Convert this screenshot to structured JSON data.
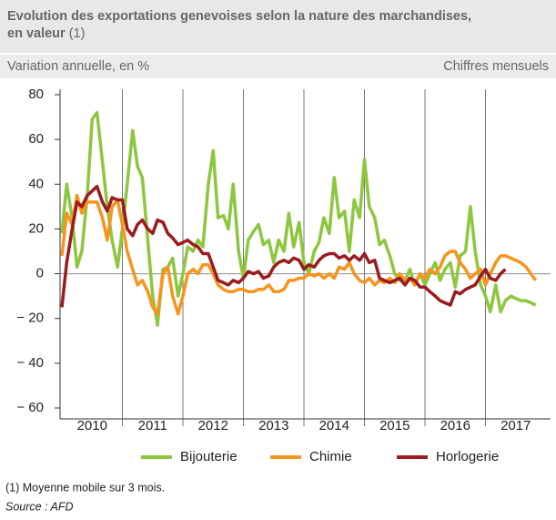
{
  "chart_data": {
    "type": "line",
    "title": "Evolution des exportations genevoises selon la nature des marchandises, en valeur",
    "title_note": "(1)",
    "subtitle": "Variation annuelle, en %",
    "frequency": "Chiffres mensuels",
    "footnote": "(1) Moyenne mobile sur 3 mois.",
    "source": "Source : AFD",
    "x": [
      2010,
      2010.08,
      2010.17,
      2010.25,
      2010.33,
      2010.42,
      2010.5,
      2010.58,
      2010.67,
      2010.75,
      2010.83,
      2010.92,
      2011,
      2011.08,
      2011.17,
      2011.25,
      2011.33,
      2011.42,
      2011.5,
      2011.58,
      2011.67,
      2011.75,
      2011.83,
      2011.92,
      2012,
      2012.08,
      2012.17,
      2012.25,
      2012.33,
      2012.42,
      2012.5,
      2012.58,
      2012.67,
      2012.75,
      2012.83,
      2012.92,
      2013,
      2013.08,
      2013.17,
      2013.25,
      2013.33,
      2013.42,
      2013.5,
      2013.58,
      2013.67,
      2013.75,
      2013.83,
      2013.92,
      2014,
      2014.08,
      2014.17,
      2014.25,
      2014.33,
      2014.42,
      2014.5,
      2014.58,
      2014.67,
      2014.75,
      2014.83,
      2014.92,
      2015,
      2015.08,
      2015.17,
      2015.25,
      2015.33,
      2015.42,
      2015.5,
      2015.58,
      2015.67,
      2015.75,
      2015.83,
      2015.92,
      2016,
      2016.08,
      2016.17,
      2016.25,
      2016.33,
      2016.42,
      2016.5,
      2016.58,
      2016.67,
      2016.75,
      2016.83,
      2016.92,
      2017,
      2017.08,
      2017.17,
      2017.25,
      2017.33,
      2017.42,
      2017.5,
      2017.58,
      2017.67,
      2017.75,
      2017.83
    ],
    "series": [
      {
        "name": "Bijouterie",
        "color": "#8dc63f",
        "values": [
          18,
          40,
          25,
          3,
          10,
          35,
          69,
          72,
          50,
          30,
          15,
          3,
          20,
          40,
          64,
          48,
          43,
          15,
          -10,
          -23,
          2,
          3,
          7,
          -10,
          0,
          12,
          10,
          15,
          12,
          40,
          55,
          25,
          26,
          20,
          40,
          10,
          -2,
          15,
          19,
          22,
          13,
          15,
          5,
          15,
          10,
          27,
          12,
          23,
          5,
          0,
          10,
          14,
          25,
          18,
          43,
          25,
          28,
          10,
          33,
          25,
          51,
          30,
          25,
          13,
          15,
          8,
          0,
          -3,
          -3,
          2,
          -5,
          0,
          -5,
          0,
          5,
          -3,
          2,
          5,
          -6,
          8,
          10,
          30,
          10,
          -5,
          -10,
          -17,
          -5,
          -17,
          -12,
          -10,
          -11,
          -12,
          -12,
          -13,
          -14
        ]
      },
      {
        "name": "Chimie",
        "color": "#f7941d",
        "values": [
          8,
          27,
          22,
          35,
          27,
          32,
          32,
          32,
          25,
          15,
          30,
          33,
          22,
          10,
          2,
          -5,
          -3,
          -8,
          -15,
          -18,
          0,
          3,
          -10,
          -18,
          -10,
          0,
          2,
          0,
          4,
          4,
          0,
          -5,
          -7,
          -8,
          -8,
          -7,
          -7,
          -8,
          -8,
          -7,
          -7,
          -5,
          -8,
          -8,
          -7,
          -3,
          -3,
          -2,
          -2,
          0,
          -1,
          0,
          -2,
          0,
          -2,
          3,
          2,
          5,
          0,
          -3,
          -4,
          -2,
          -5,
          -3,
          -4,
          -2,
          -4,
          0,
          -3,
          -2,
          -5,
          0,
          -2,
          2,
          0,
          3,
          8,
          10,
          10,
          5,
          2,
          -2,
          0,
          2,
          -5,
          0,
          5,
          8,
          8,
          7,
          6,
          5,
          3,
          0,
          -3
        ]
      },
      {
        "name": "Horlogerie",
        "color": "#9b1b1f",
        "values": [
          -15,
          5,
          20,
          32,
          30,
          35,
          37,
          39,
          32,
          28,
          34,
          33,
          33,
          20,
          17,
          22,
          24,
          20,
          18,
          24,
          23,
          18,
          16,
          13,
          14,
          15,
          13,
          12,
          9,
          9,
          3,
          -3,
          -4,
          -5,
          -3,
          -4,
          -2,
          1,
          0,
          1,
          -2,
          -1,
          3,
          5,
          6,
          5,
          7,
          6,
          2,
          4,
          3,
          6,
          8,
          9,
          9,
          7,
          8,
          6,
          8,
          6,
          9,
          5,
          6,
          -2,
          -3,
          -4,
          -3,
          -2,
          -5,
          -2,
          -3,
          -6,
          -6,
          -8,
          -10,
          -12,
          -13,
          -14,
          -8,
          -9,
          -7,
          -6,
          -5,
          -1,
          2,
          -2,
          -3,
          0,
          2,
          null,
          null,
          null,
          null,
          null,
          null
        ]
      }
    ],
    "xlim": [
      2010,
      2018
    ],
    "xticks": [
      2010,
      2011,
      2012,
      2013,
      2014,
      2015,
      2016,
      2017
    ],
    "ylim": [
      -60,
      80
    ],
    "yticks": [
      {
        "value": -60,
        "label": "− 60"
      },
      {
        "value": -40,
        "label": "− 40"
      },
      {
        "value": -20,
        "label": "− 20"
      },
      0,
      20,
      40,
      60,
      80
    ],
    "zero_line": true
  }
}
